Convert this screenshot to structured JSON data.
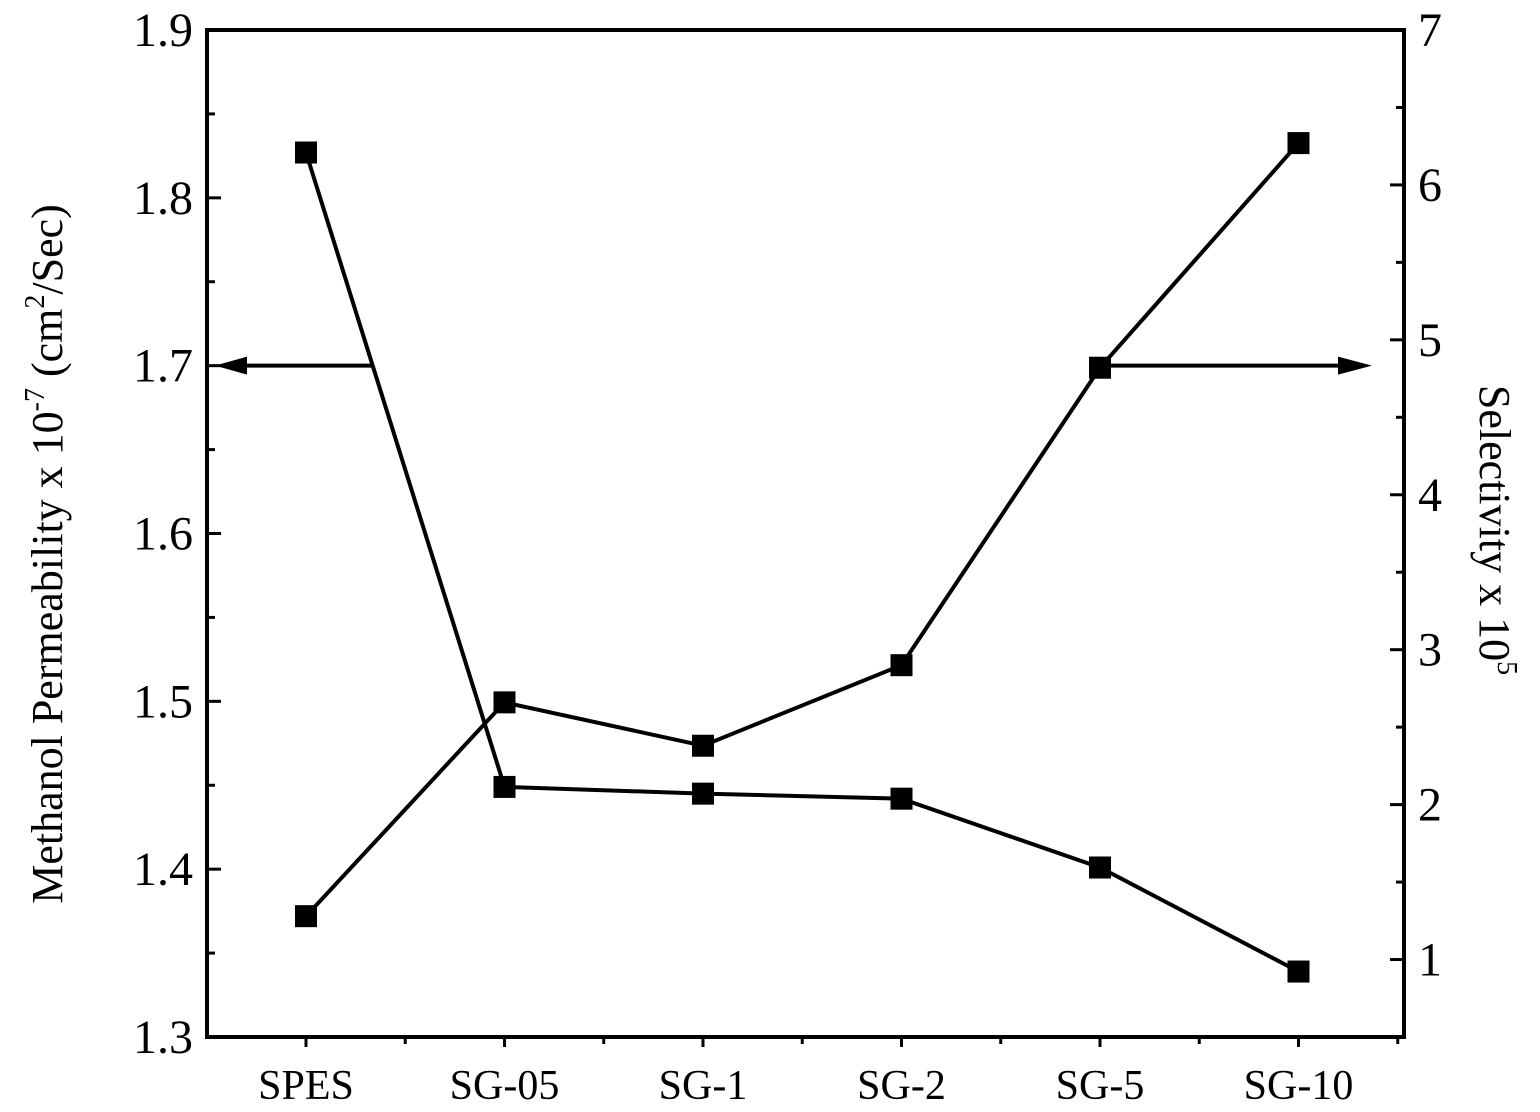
{
  "chart_data": {
    "type": "line",
    "categories": [
      "SPES",
      "SG-05",
      "SG-1",
      "SG-2",
      "SG-5",
      "SG-10"
    ],
    "series": [
      {
        "axis": "left",
        "values": [
          1.827,
          1.449,
          1.445,
          1.442,
          1.401,
          1.339
        ],
        "arrow": "left"
      },
      {
        "axis": "right",
        "values": [
          1.28,
          2.66,
          2.38,
          2.9,
          4.82,
          6.27
        ],
        "arrow": "right"
      }
    ],
    "y_left": {
      "label_main": "Methanol Permeability x 10",
      "label_exp": "-7",
      "label_tail_open": " (cm",
      "label_tail_exp": "2",
      "label_tail_close": "/Sec)",
      "ylim": [
        1.3,
        1.9
      ],
      "ticks": [
        "1.3",
        "1.4",
        "1.5",
        "1.6",
        "1.7",
        "1.8",
        "1.9"
      ]
    },
    "y_right": {
      "label_main": "Selectivity x 10",
      "label_exp": "5",
      "ylim": [
        0.5,
        7.0
      ],
      "ticks": [
        "1",
        "2",
        "3",
        "4",
        "5",
        "6",
        "7"
      ]
    },
    "marker": "filled-square",
    "color": "#000000",
    "grid": false,
    "legend": "none"
  }
}
